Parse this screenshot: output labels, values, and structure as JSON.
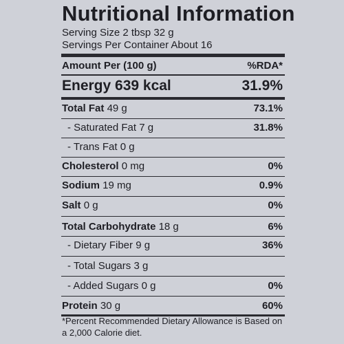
{
  "title": "Nutritional Information",
  "serving_size": "Serving Size 2 tbsp 32 g",
  "servings_per_container": "Servings Per Container About 16",
  "header": {
    "amount_label": "Amount Per (100 g)",
    "rda_label": "%RDA*"
  },
  "energy": {
    "label": "Energy 639 kcal",
    "rda": "31.9%"
  },
  "nutrients": [
    {
      "name": "Total Fat",
      "amount": "49 g",
      "rda": "73.1%"
    },
    {
      "name": "- Saturated Fat",
      "amount": "7 g",
      "rda": "31.8%"
    },
    {
      "name": "- Trans Fat",
      "amount": "0 g",
      "rda": ""
    },
    {
      "name": "Cholesterol",
      "amount": "0 mg",
      "rda": "0%"
    },
    {
      "name": "Sodium",
      "amount": "19 mg",
      "rda": "0.9%"
    },
    {
      "name": "Salt",
      "amount": "0 g",
      "rda": "0%"
    },
    {
      "name": "Total Carbohydrate",
      "amount": "18 g",
      "rda": "6%"
    },
    {
      "name": "- Dietary Fiber",
      "amount": "9 g",
      "rda": "36%"
    },
    {
      "name": "- Total Sugars",
      "amount": "3 g",
      "rda": ""
    },
    {
      "name": "- Added Sugars",
      "amount": "0 g",
      "rda": "0%"
    },
    {
      "name": "Protein",
      "amount": "30 g",
      "rda": "60%"
    }
  ],
  "footnote": "*Percent Recommended Dietary Allowance is Based on a 2,000 Calorie diet."
}
